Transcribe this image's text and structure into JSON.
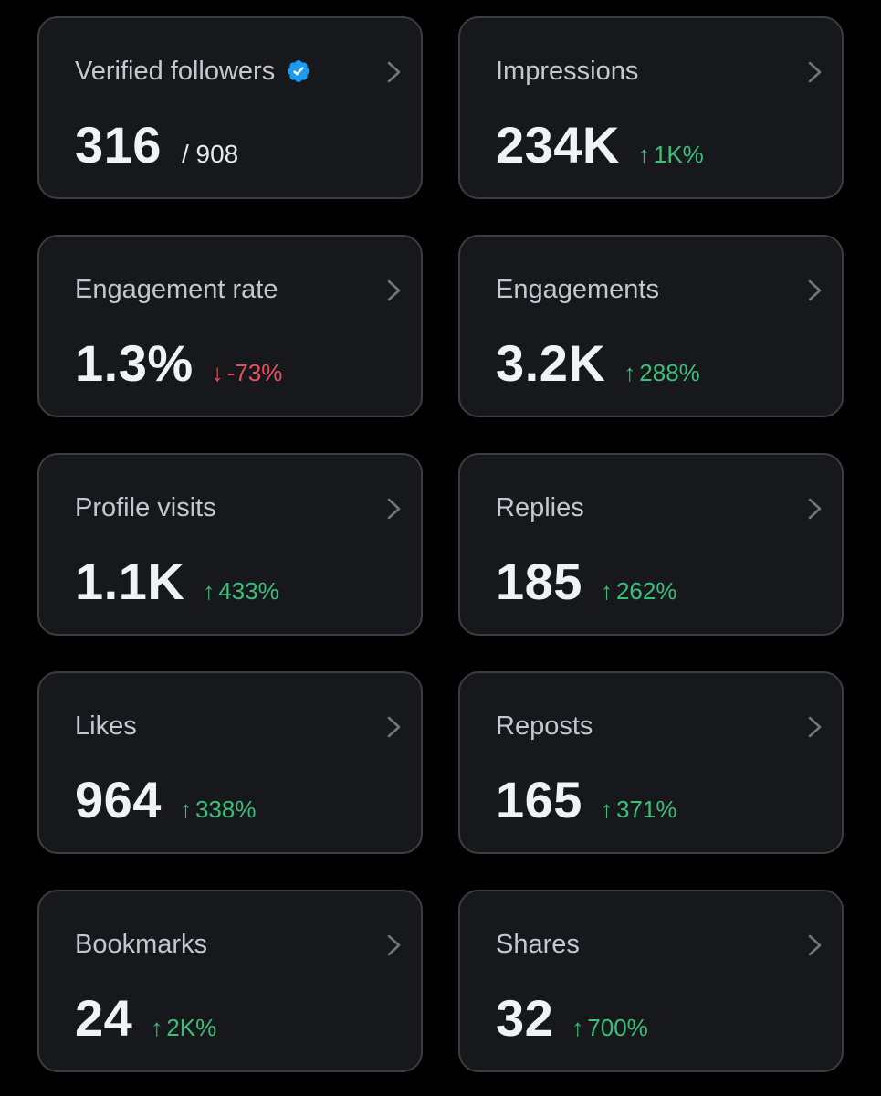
{
  "colors": {
    "background": "#000000",
    "card": "#16181c",
    "card_border": "#3a3d42",
    "up": "#3bbf7a",
    "down": "#e8505e",
    "verified_badge": "#1d9bf0"
  },
  "cards": [
    {
      "id": "verified-followers",
      "title": "Verified followers",
      "value": "316",
      "secondary": "/ 908",
      "verified_badge": true
    },
    {
      "id": "impressions",
      "title": "Impressions",
      "value": "234K",
      "change_arrow": "↑",
      "change": "1K%",
      "direction": "up"
    },
    {
      "id": "engagement-rate",
      "title": "Engagement rate",
      "value": "1.3%",
      "change_arrow": "↓",
      "change": "-73%",
      "direction": "down"
    },
    {
      "id": "engagements",
      "title": "Engagements",
      "value": "3.2K",
      "change_arrow": "↑",
      "change": "288%",
      "direction": "up"
    },
    {
      "id": "profile-visits",
      "title": "Profile visits",
      "value": "1.1K",
      "change_arrow": "↑",
      "change": "433%",
      "direction": "up"
    },
    {
      "id": "replies",
      "title": "Replies",
      "value": "185",
      "change_arrow": "↑",
      "change": "262%",
      "direction": "up"
    },
    {
      "id": "likes",
      "title": "Likes",
      "value": "964",
      "change_arrow": "↑",
      "change": "338%",
      "direction": "up"
    },
    {
      "id": "reposts",
      "title": "Reposts",
      "value": "165",
      "change_arrow": "↑",
      "change": "371%",
      "direction": "up"
    },
    {
      "id": "bookmarks",
      "title": "Bookmarks",
      "value": "24",
      "change_arrow": "↑",
      "change": "2K%",
      "direction": "up"
    },
    {
      "id": "shares",
      "title": "Shares",
      "value": "32",
      "change_arrow": "↑",
      "change": "700%",
      "direction": "up"
    }
  ]
}
